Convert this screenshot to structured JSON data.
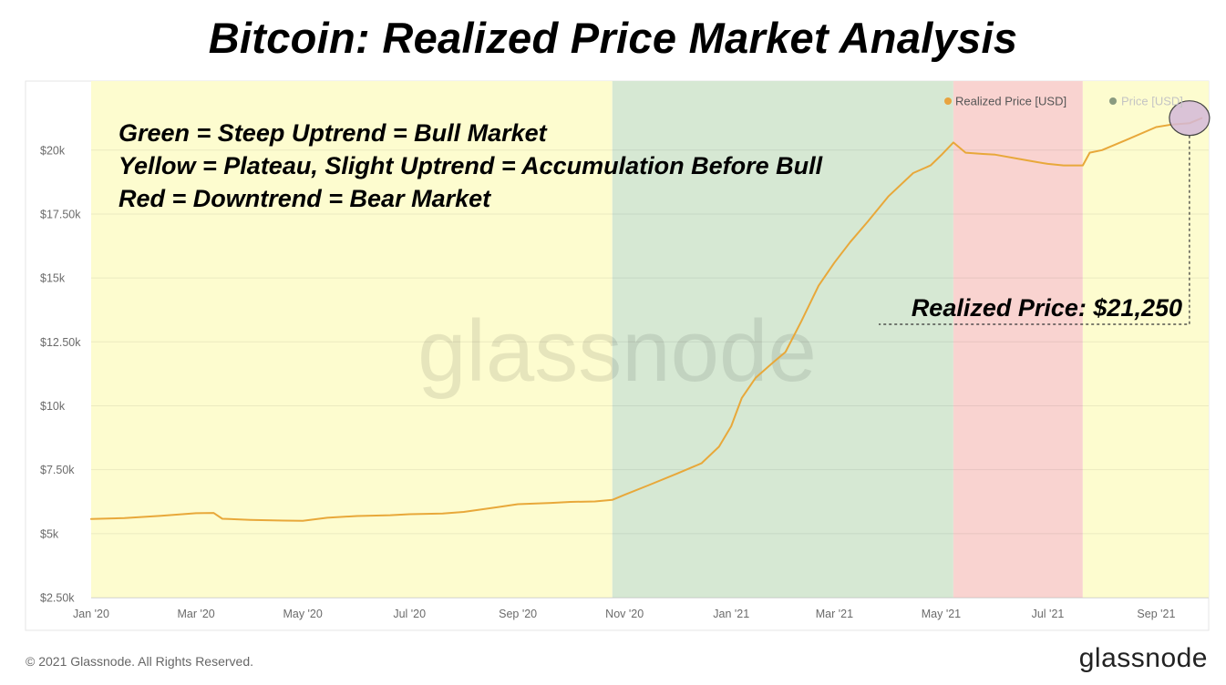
{
  "title": "Bitcoin: Realized Price Market Analysis",
  "annotations": {
    "lines": [
      "Green = Steep Uptrend = Bull Market",
      "Yellow = Plateau, Slight Uptrend = Accumulation Before Bull",
      "Red = Downtrend = Bear Market"
    ],
    "callout": "Realized Price: $21,250"
  },
  "watermark": "glassnode",
  "footer": {
    "copyright": "© 2021 Glassnode. All Rights Reserved.",
    "logo": "glassnode"
  },
  "colors": {
    "line": "#e8a83a",
    "yellow_band": "#fdfccf",
    "green_band": "#d6e8d3",
    "red_band": "#f9d3d0",
    "legend_realized": "#e8a33f",
    "legend_price": "#8a9a80",
    "marker_fill": "#d3b8d8"
  },
  "chart_data": {
    "type": "line",
    "title": "",
    "xlabel": "",
    "ylabel": "",
    "ylim": [
      2500,
      22700
    ],
    "xlim": [
      "2020-01-01",
      "2021-10-01"
    ],
    "yticks": [
      2500,
      5000,
      7500,
      10000,
      12500,
      15000,
      17500,
      20000
    ],
    "ytick_labels": [
      "$2.50k",
      "$5k",
      "$7.50k",
      "$10k",
      "$12.50k",
      "$15k",
      "$17.50k",
      "$20k"
    ],
    "xticks": [
      "2020-01-01",
      "2020-03-01",
      "2020-05-01",
      "2020-07-01",
      "2020-09-01",
      "2020-11-01",
      "2021-01-01",
      "2021-03-01",
      "2021-05-01",
      "2021-07-01",
      "2021-09-01"
    ],
    "xtick_labels": [
      "Jan '20",
      "Mar '20",
      "May '20",
      "Jul '20",
      "Sep '20",
      "Nov '20",
      "Jan '21",
      "Mar '21",
      "May '21",
      "Jul '21",
      "Sep '21"
    ],
    "legend": {
      "position": "top-right",
      "entries": [
        "Realized Price [USD]",
        "Price [USD]"
      ]
    },
    "grid": true,
    "regions": [
      {
        "start": "2020-01-01",
        "end": "2020-10-25",
        "phase": "yellow"
      },
      {
        "start": "2020-10-25",
        "end": "2021-05-08",
        "phase": "green"
      },
      {
        "start": "2021-05-08",
        "end": "2021-07-21",
        "phase": "red"
      },
      {
        "start": "2021-07-21",
        "end": "2021-10-01",
        "phase": "yellow"
      }
    ],
    "series": [
      {
        "name": "Realized Price [USD]",
        "x": [
          "2020-01-01",
          "2020-01-20",
          "2020-02-10",
          "2020-03-01",
          "2020-03-11",
          "2020-03-16",
          "2020-04-01",
          "2020-04-20",
          "2020-05-01",
          "2020-05-15",
          "2020-06-01",
          "2020-06-20",
          "2020-07-01",
          "2020-07-20",
          "2020-08-01",
          "2020-08-20",
          "2020-09-01",
          "2020-09-20",
          "2020-10-01",
          "2020-10-15",
          "2020-10-25",
          "2020-11-01",
          "2020-11-15",
          "2020-12-01",
          "2020-12-15",
          "2020-12-25",
          "2021-01-01",
          "2021-01-07",
          "2021-01-15",
          "2021-01-25",
          "2021-02-01",
          "2021-02-10",
          "2021-02-20",
          "2021-03-01",
          "2021-03-10",
          "2021-03-20",
          "2021-04-01",
          "2021-04-15",
          "2021-04-25",
          "2021-05-01",
          "2021-05-08",
          "2021-05-15",
          "2021-05-25",
          "2021-06-01",
          "2021-06-15",
          "2021-06-25",
          "2021-07-01",
          "2021-07-10",
          "2021-07-21",
          "2021-07-25",
          "2021-08-01",
          "2021-08-15",
          "2021-09-01",
          "2021-09-10",
          "2021-09-20",
          "2021-09-27"
        ],
        "values": [
          5570,
          5610,
          5700,
          5800,
          5810,
          5580,
          5540,
          5510,
          5500,
          5620,
          5690,
          5720,
          5760,
          5790,
          5850,
          6030,
          6150,
          6200,
          6240,
          6260,
          6320,
          6520,
          6900,
          7350,
          7750,
          8400,
          9200,
          10300,
          11100,
          11700,
          12100,
          13300,
          14700,
          15600,
          16400,
          17200,
          18200,
          19100,
          19400,
          19800,
          20300,
          19900,
          19850,
          19820,
          19650,
          19530,
          19460,
          19400,
          19400,
          19900,
          20000,
          20400,
          20900,
          21000,
          21050,
          21250
        ]
      },
      {
        "name": "Price [USD]",
        "x": [],
        "values": []
      }
    ]
  }
}
